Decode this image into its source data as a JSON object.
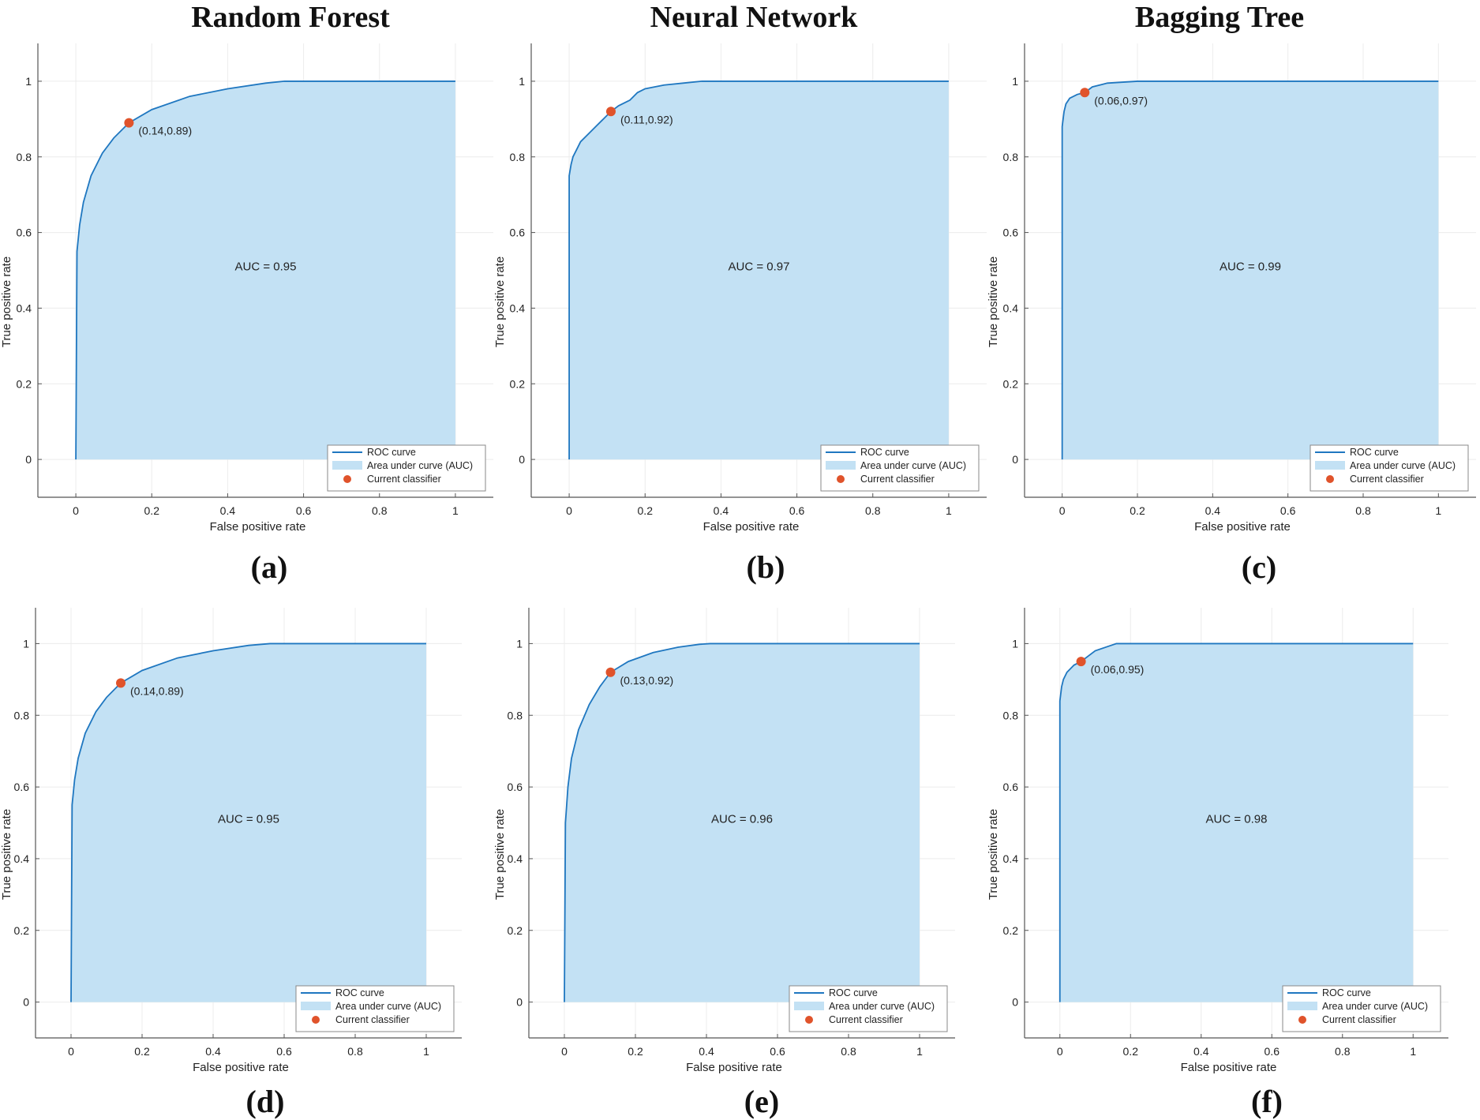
{
  "figure": {
    "column_titles": [
      "Random Forest",
      "Neural Network",
      "Bagging Tree"
    ],
    "captions": [
      "(a)",
      "(b)",
      "(c)",
      "(d)",
      "(e)",
      "(f)"
    ]
  },
  "colors": {
    "curve": "#1f77c0",
    "fill": "#c3e1f4",
    "point": "#e0532b",
    "grid": "#ececec",
    "axis": "#555555"
  },
  "chart_data": [
    {
      "type": "area",
      "panel": "a",
      "title": "Random Forest",
      "xlabel": "False positive rate",
      "ylabel": "True positive rate",
      "xlim": [
        -0.1,
        1.1
      ],
      "ylim": [
        -0.1,
        1.1
      ],
      "xticks": [
        "0",
        "0.2",
        "0.4",
        "0.6",
        "0.8",
        "1"
      ],
      "yticks": [
        "0",
        "0.2",
        "0.4",
        "0.6",
        "0.8",
        "1"
      ],
      "auc_text": "AUC = 0.95",
      "point": {
        "x": 0.14,
        "y": 0.89,
        "label": "(0.14,0.89)"
      },
      "legend": [
        "ROC curve",
        "Area under curve (AUC)",
        "Current classifier"
      ],
      "curve": {
        "x": [
          0,
          0.003,
          0.01,
          0.02,
          0.04,
          0.07,
          0.1,
          0.14,
          0.2,
          0.3,
          0.4,
          0.5,
          0.55,
          0.6,
          1.0
        ],
        "y": [
          0,
          0.55,
          0.62,
          0.68,
          0.75,
          0.81,
          0.85,
          0.89,
          0.925,
          0.96,
          0.98,
          0.995,
          1.0,
          1.0,
          1.0
        ]
      }
    },
    {
      "type": "area",
      "panel": "b",
      "title": "Neural Network",
      "xlabel": "False positive rate",
      "ylabel": "True positive rate",
      "xlim": [
        -0.1,
        1.1
      ],
      "ylim": [
        -0.1,
        1.1
      ],
      "xticks": [
        "0",
        "0.2",
        "0.4",
        "0.6",
        "0.8",
        "1"
      ],
      "yticks": [
        "0",
        "0.2",
        "0.4",
        "0.6",
        "0.8",
        "1"
      ],
      "auc_text": "AUC = 0.97",
      "point": {
        "x": 0.11,
        "y": 0.92,
        "label": "(0.11,0.92)"
      },
      "legend": [
        "ROC curve",
        "Area under curve (AUC)",
        "Current classifier"
      ],
      "curve": {
        "x": [
          0,
          0.0,
          0.005,
          0.01,
          0.02,
          0.03,
          0.05,
          0.07,
          0.09,
          0.11,
          0.13,
          0.16,
          0.18,
          0.2,
          0.25,
          0.3,
          0.35,
          1.0
        ],
        "y": [
          0,
          0.75,
          0.78,
          0.8,
          0.82,
          0.84,
          0.86,
          0.88,
          0.9,
          0.92,
          0.935,
          0.95,
          0.97,
          0.98,
          0.99,
          0.995,
          1.0,
          1.0
        ]
      }
    },
    {
      "type": "area",
      "panel": "c",
      "title": "Bagging Tree",
      "xlabel": "False positive rate",
      "ylabel": "True positive rate",
      "xlim": [
        -0.1,
        1.1
      ],
      "ylim": [
        -0.1,
        1.1
      ],
      "xticks": [
        "0",
        "0.2",
        "0.4",
        "0.6",
        "0.8",
        "1"
      ],
      "yticks": [
        "0",
        "0.2",
        "0.4",
        "0.6",
        "0.8",
        "1"
      ],
      "auc_text": "AUC = 0.99",
      "point": {
        "x": 0.06,
        "y": 0.97,
        "label": "(0.06,0.97)"
      },
      "legend": [
        "ROC curve",
        "Area under curve (AUC)",
        "Current classifier"
      ],
      "curve": {
        "x": [
          0,
          0.0,
          0.005,
          0.01,
          0.02,
          0.04,
          0.06,
          0.08,
          0.12,
          0.2,
          1.0
        ],
        "y": [
          0,
          0.88,
          0.92,
          0.94,
          0.955,
          0.965,
          0.97,
          0.985,
          0.995,
          1.0,
          1.0
        ]
      }
    },
    {
      "type": "area",
      "panel": "d",
      "title": "",
      "xlabel": "False positive rate",
      "ylabel": "True positive rate",
      "xlim": [
        -0.1,
        1.1
      ],
      "ylim": [
        -0.1,
        1.1
      ],
      "xticks": [
        "0",
        "0.2",
        "0.4",
        "0.6",
        "0.8",
        "1"
      ],
      "yticks": [
        "0",
        "0.2",
        "0.4",
        "0.6",
        "0.8",
        "1"
      ],
      "auc_text": "AUC = 0.95",
      "point": {
        "x": 0.14,
        "y": 0.89,
        "label": "(0.14,0.89)"
      },
      "legend": [
        "ROC curve",
        "Area under curve (AUC)",
        "Current classifier"
      ],
      "curve": {
        "x": [
          0,
          0.003,
          0.01,
          0.02,
          0.04,
          0.07,
          0.1,
          0.14,
          0.2,
          0.3,
          0.4,
          0.5,
          0.56,
          0.6,
          1.0
        ],
        "y": [
          0,
          0.55,
          0.62,
          0.68,
          0.75,
          0.81,
          0.85,
          0.89,
          0.925,
          0.96,
          0.98,
          0.995,
          1.0,
          1.0,
          1.0
        ]
      }
    },
    {
      "type": "area",
      "panel": "e",
      "title": "",
      "xlabel": "False positive rate",
      "ylabel": "True positive rate",
      "xlim": [
        -0.1,
        1.1
      ],
      "ylim": [
        -0.1,
        1.1
      ],
      "xticks": [
        "0",
        "0.2",
        "0.4",
        "0.6",
        "0.8",
        "1"
      ],
      "yticks": [
        "0",
        "0.2",
        "0.4",
        "0.6",
        "0.8",
        "1"
      ],
      "auc_text": "AUC = 0.96",
      "point": {
        "x": 0.13,
        "y": 0.92,
        "label": "(0.13,0.92)"
      },
      "legend": [
        "ROC curve",
        "Area under curve (AUC)",
        "Current classifier"
      ],
      "curve": {
        "x": [
          0,
          0.003,
          0.01,
          0.02,
          0.04,
          0.07,
          0.1,
          0.13,
          0.18,
          0.25,
          0.32,
          0.38,
          0.41,
          1.0
        ],
        "y": [
          0,
          0.5,
          0.6,
          0.68,
          0.76,
          0.83,
          0.88,
          0.92,
          0.95,
          0.975,
          0.99,
          0.998,
          1.0,
          1.0
        ]
      }
    },
    {
      "type": "area",
      "panel": "f",
      "title": "",
      "xlabel": "False positive rate",
      "ylabel": "True positive rate",
      "xlim": [
        -0.1,
        1.1
      ],
      "ylim": [
        -0.1,
        1.1
      ],
      "xticks": [
        "0",
        "0.2",
        "0.4",
        "0.6",
        "0.8",
        "1"
      ],
      "yticks": [
        "0",
        "0.2",
        "0.4",
        "0.6",
        "0.8",
        "1"
      ],
      "auc_text": "AUC = 0.98",
      "point": {
        "x": 0.06,
        "y": 0.95,
        "label": "(0.06,0.95)"
      },
      "legend": [
        "ROC curve",
        "Area under curve (AUC)",
        "Current classifier"
      ],
      "curve": {
        "x": [
          0,
          0.0,
          0.005,
          0.01,
          0.02,
          0.04,
          0.06,
          0.08,
          0.1,
          0.13,
          0.16,
          1.0
        ],
        "y": [
          0,
          0.84,
          0.88,
          0.9,
          0.92,
          0.94,
          0.95,
          0.965,
          0.98,
          0.99,
          1.0,
          1.0
        ]
      }
    }
  ]
}
